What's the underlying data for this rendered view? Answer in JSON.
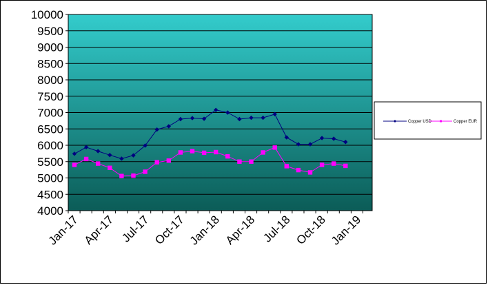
{
  "chart_data": {
    "type": "line",
    "title": "",
    "xlabel": "",
    "ylabel": "",
    "ylim": [
      4000,
      10000
    ],
    "y_ticks": [
      "4000",
      "4500",
      "5000",
      "5500",
      "6000",
      "6500",
      "7000",
      "7500",
      "8000",
      "8500",
      "9000",
      "9500",
      "10000"
    ],
    "x_ticks": [
      "Jan-17",
      "Apr-17",
      "Jul-17",
      "Oct-17",
      "Jan-18",
      "Apr-18",
      "Jul-18",
      "Oct-18",
      "Jan-19"
    ],
    "x": [
      "Jan-17",
      "Feb-17",
      "Mar-17",
      "Apr-17",
      "May-17",
      "Jun-17",
      "Jul-17",
      "Aug-17",
      "Sep-17",
      "Oct-17",
      "Nov-17",
      "Dec-17",
      "Jan-18",
      "Feb-18",
      "Mar-18",
      "Apr-18",
      "May-18",
      "Jun-18",
      "Jul-18",
      "Aug-18",
      "Sep-18",
      "Oct-18",
      "Nov-18",
      "Dec-18"
    ],
    "series": [
      {
        "name": "Copper USD",
        "color": "#000080",
        "marker": "diamond",
        "values": [
          5740,
          5940,
          5820,
          5700,
          5590,
          5690,
          5990,
          6480,
          6580,
          6800,
          6830,
          6810,
          7080,
          7000,
          6800,
          6840,
          6840,
          6950,
          6240,
          6030,
          6030,
          6220,
          6200,
          6100
        ]
      },
      {
        "name": "Copper EUR",
        "color": "#ff00ff",
        "marker": "square",
        "values": [
          5400,
          5580,
          5440,
          5310,
          5060,
          5070,
          5190,
          5480,
          5530,
          5780,
          5820,
          5770,
          5790,
          5660,
          5500,
          5500,
          5780,
          5930,
          5360,
          5240,
          5170,
          5400,
          5440,
          5370
        ]
      }
    ],
    "grid": true,
    "legend_position": "right",
    "background": "gradient-teal"
  }
}
